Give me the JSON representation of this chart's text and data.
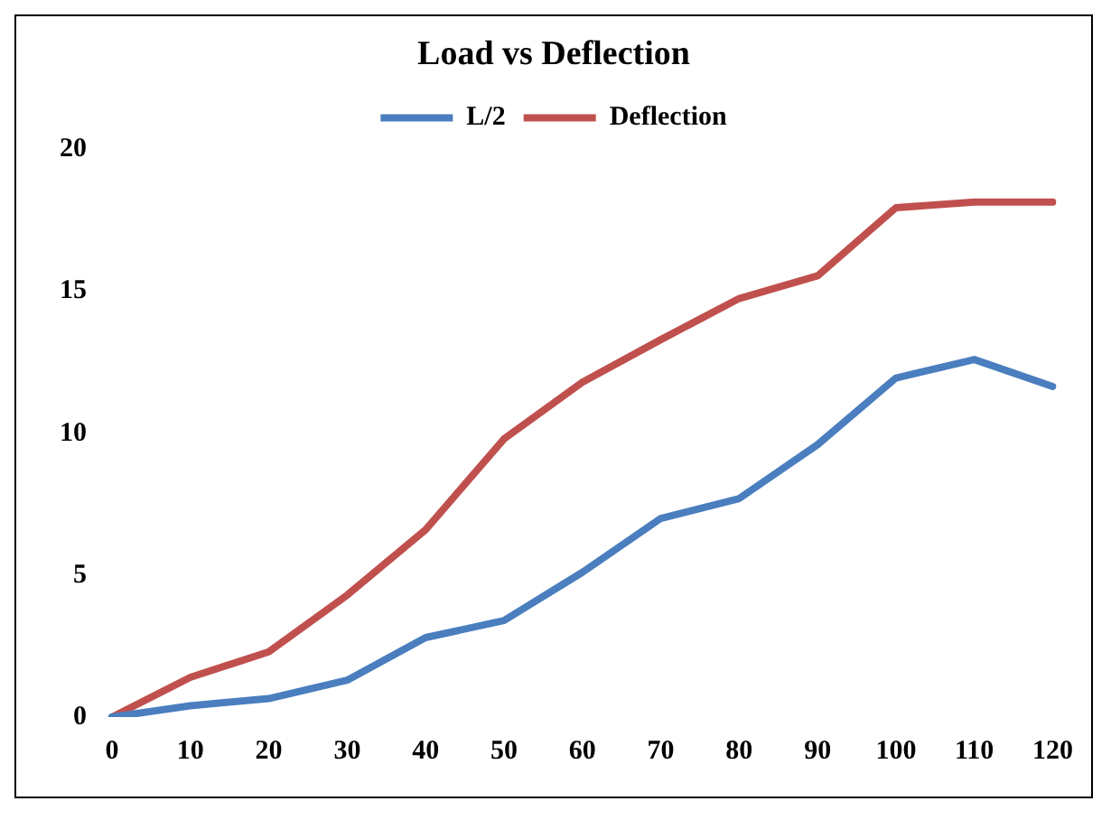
{
  "chart_data": {
    "type": "line",
    "title": "Load vs Deflection",
    "categories": [
      "0",
      "10",
      "20",
      "30",
      "40",
      "50",
      "60",
      "70",
      "80",
      "90",
      "100",
      "110",
      "120"
    ],
    "series": [
      {
        "name": "L/2",
        "color": "#4a7ebf",
        "values": [
          0,
          0.4,
          0.65,
          1.3,
          2.8,
          3.4,
          5.1,
          7.0,
          7.7,
          9.6,
          11.95,
          12.6,
          11.65
        ]
      },
      {
        "name": "Deflection",
        "color": "#c0504d",
        "values": [
          0,
          1.4,
          2.3,
          4.3,
          6.6,
          9.8,
          11.8,
          13.3,
          14.75,
          15.55,
          17.95,
          18.15,
          18.15
        ]
      }
    ],
    "ylim": [
      0,
      20
    ],
    "yticks": [
      0,
      5,
      10,
      15,
      20
    ],
    "grid": false,
    "legend": "top",
    "marker": "none",
    "line_style": "solid"
  }
}
